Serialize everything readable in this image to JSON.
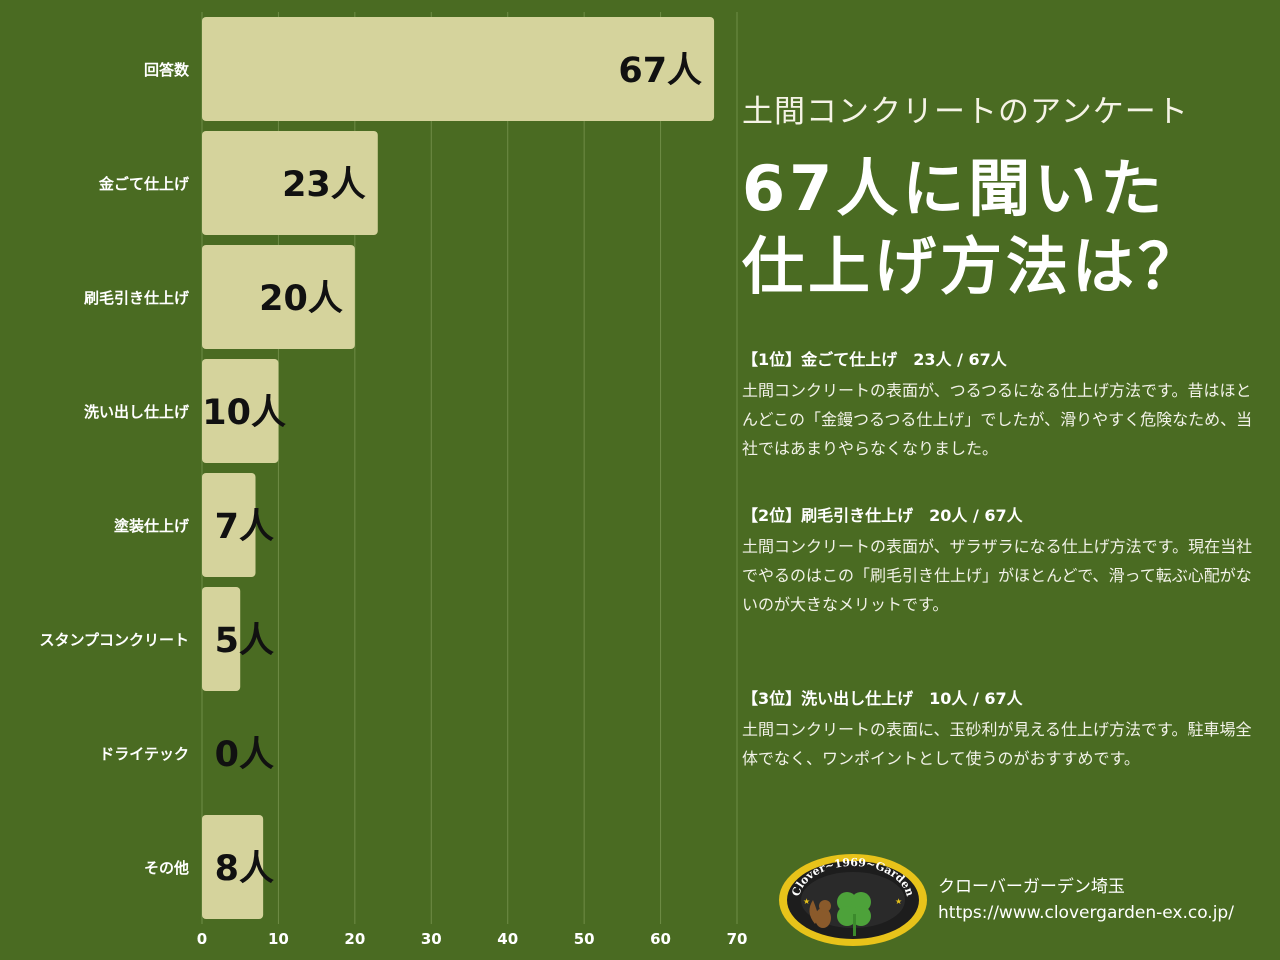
{
  "chart_data": {
    "type": "bar",
    "orientation": "horizontal",
    "categories": [
      "回答数",
      "金ごて仕上げ",
      "刷毛引き仕上げ",
      "洗い出し仕上げ",
      "塗装仕上げ",
      "スタンプコンクリート",
      "ドライテック",
      "その他"
    ],
    "values": [
      67,
      23,
      20,
      10,
      7,
      5,
      0,
      8
    ],
    "data_labels": [
      "67人",
      "23人",
      "20人",
      "10人",
      "7人",
      "5人",
      "0人",
      "8人"
    ],
    "x_ticks": [
      "0",
      "10",
      "20",
      "30",
      "40",
      "50",
      "60",
      "70"
    ],
    "xlim": [
      0,
      70
    ],
    "grid": true,
    "bar_color": "#d5d39c",
    "grid_color": "#6f8c46"
  },
  "heading": "土間コンクリートのアンケート",
  "title_lines": [
    "67人に聞いた",
    "仕上げ方法は？"
  ],
  "ranks": [
    {
      "head": "【1位】金ごて仕上げ　23人 / 67人",
      "body": "土間コンクリートの表面が、つるつるになる仕上げ方法です。昔はほとんどこの「金鏝つるつる仕上げ」でしたが、滑りやすく危険なため、当社ではあまりやらなくなりました。"
    },
    {
      "head": "【2位】刷毛引き仕上げ　20人 / 67人",
      "body": "土間コンクリートの表面が、ザラザラになる仕上げ方法です。現在当社でやるのはこの「刷毛引き仕上げ」がほとんどで、滑って転ぶ心配がないのが大きなメリットです。"
    },
    {
      "head": "【3位】洗い出し仕上げ　10人 / 67人",
      "body": "土間コンクリートの表面に、玉砂利が見える仕上げ方法です。駐車場全体でなく、ワンポイントとして使うのがおすすめです。"
    }
  ],
  "logo": {
    "text": "Clover~1969~Garden",
    "colors": {
      "ring": "#e8c31a",
      "inner": "#1d1d1d",
      "leaf": "#4da23a"
    }
  },
  "company": "クローバーガーデン埼玉",
  "url": "https://www.clovergarden-ex.co.jp/"
}
